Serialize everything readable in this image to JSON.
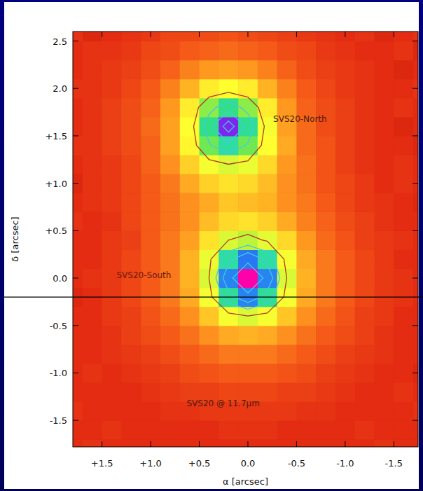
{
  "chart_data": {
    "type": "heatmap",
    "xlabel": "α [arcsec]",
    "ylabel": "δ [arcsec]",
    "xlim": [
      1.8,
      -1.75
    ],
    "ylim": [
      -1.78,
      2.6
    ],
    "xticks": [
      {
        "value": 1.5,
        "label": "+1.5"
      },
      {
        "value": 1.0,
        "label": "+1.0"
      },
      {
        "value": 0.5,
        "label": "+0.5"
      },
      {
        "value": 0,
        "label": "0.0"
      },
      {
        "value": -0.5,
        "label": "-0.5"
      },
      {
        "value": -1.0,
        "label": "-1.0"
      },
      {
        "value": -1.5,
        "label": "-1.5"
      }
    ],
    "yticks": [
      {
        "value": -1.5,
        "label": "-1.5"
      },
      {
        "value": -1.0,
        "label": "-1.0"
      },
      {
        "value": -0.5,
        "label": "-0.5"
      },
      {
        "value": 0,
        "label": "0.0"
      },
      {
        "value": 0.5,
        "label": "+0.5"
      },
      {
        "value": 1.0,
        "label": "+1.0"
      },
      {
        "value": 1.5,
        "label": "+1.5"
      },
      {
        "value": 2.0,
        "label": "2.0"
      },
      {
        "value": 2.5,
        "label": "2.5"
      }
    ],
    "x": [
      1.8,
      1.6,
      1.4,
      1.2,
      1.0,
      0.8,
      0.6,
      0.4,
      0.2,
      0,
      -0.2,
      -0.4,
      -0.6,
      -0.8,
      -1.0,
      -1.2,
      -1.4,
      -1.6,
      -1.8
    ],
    "y": [
      -1.8,
      -1.6,
      -1.4,
      -1.2,
      -1.0,
      -0.8,
      -0.6,
      -0.4,
      -0.2,
      0,
      0.2,
      0.4,
      0.6,
      0.8,
      1.0,
      1.2,
      1.4,
      1.6,
      1.8,
      2.0,
      2.2,
      2.4,
      2.6
    ],
    "values": [
      [
        10,
        11,
        10,
        10,
        10,
        10,
        10,
        10,
        10,
        10,
        10,
        10,
        10,
        10,
        10,
        10,
        11,
        10,
        10
      ],
      [
        10,
        10,
        11,
        10,
        10,
        10,
        10,
        10,
        11,
        11,
        11,
        10,
        10,
        10,
        10,
        11,
        10,
        10,
        10
      ],
      [
        11,
        10,
        10,
        10,
        10,
        11,
        11,
        12,
        12,
        12,
        12,
        12,
        11,
        11,
        10,
        10,
        10,
        10,
        11
      ],
      [
        10,
        10,
        10,
        10,
        11,
        12,
        13,
        13,
        14,
        14,
        14,
        13,
        13,
        12,
        11,
        10,
        10,
        11,
        10
      ],
      [
        10,
        11,
        10,
        11,
        12,
        13,
        15,
        16,
        17,
        17,
        17,
        16,
        15,
        13,
        12,
        11,
        10,
        10,
        9
      ],
      [
        10,
        10,
        11,
        12,
        13,
        15,
        17,
        19,
        21,
        21,
        21,
        19,
        17,
        15,
        13,
        12,
        11,
        10,
        10
      ],
      [
        10,
        10,
        11,
        13,
        15,
        17,
        20,
        24,
        27,
        28,
        27,
        24,
        20,
        17,
        15,
        13,
        11,
        10,
        10
      ],
      [
        10,
        10,
        12,
        13,
        16,
        19,
        24,
        30,
        37,
        40,
        37,
        30,
        24,
        19,
        16,
        13,
        12,
        10,
        10
      ],
      [
        9,
        10,
        12,
        14,
        17,
        21,
        27,
        37,
        56,
        68,
        56,
        37,
        27,
        21,
        17,
        14,
        12,
        11,
        10
      ],
      [
        10,
        11,
        12,
        14,
        17,
        21,
        28,
        40,
        68,
        100,
        68,
        40,
        28,
        21,
        17,
        14,
        12,
        11,
        10
      ],
      [
        10,
        10,
        12,
        14,
        17,
        21,
        28,
        38,
        57,
        69,
        57,
        37,
        27,
        21,
        17,
        14,
        12,
        10,
        10
      ],
      [
        10,
        10,
        12,
        13,
        17,
        21,
        26,
        33,
        40,
        43,
        39,
        32,
        25,
        19,
        16,
        13,
        12,
        11,
        10
      ],
      [
        11,
        10,
        11,
        14,
        17,
        20,
        24,
        29,
        32,
        33,
        31,
        27,
        22,
        18,
        15,
        13,
        11,
        10,
        10
      ],
      [
        10,
        11,
        12,
        14,
        17,
        20,
        24,
        27,
        30,
        29,
        28,
        24,
        21,
        17,
        14,
        12,
        11,
        10,
        9
      ],
      [
        9,
        11,
        12,
        14,
        17,
        21,
        27,
        31,
        33,
        32,
        29,
        24,
        20,
        16,
        14,
        12,
        10,
        11,
        10
      ],
      [
        10,
        11,
        12,
        14,
        18,
        24,
        31,
        37,
        40,
        38,
        32,
        25,
        20,
        16,
        13,
        11,
        10,
        11,
        10
      ],
      [
        11,
        11,
        13,
        15,
        18,
        26,
        35,
        49,
        57,
        49,
        36,
        27,
        19,
        16,
        13,
        11,
        10,
        10,
        9
      ],
      [
        10,
        11,
        13,
        15,
        19,
        26,
        36,
        55,
        83,
        56,
        37,
        26,
        19,
        15,
        13,
        11,
        10,
        9,
        10
      ],
      [
        10,
        11,
        13,
        15,
        18,
        25,
        34,
        47,
        55,
        47,
        34,
        25,
        18,
        15,
        13,
        11,
        10,
        11,
        10
      ],
      [
        11,
        11,
        12,
        14,
        17,
        22,
        28,
        34,
        36,
        34,
        28,
        22,
        17,
        14,
        12,
        11,
        10,
        10,
        11
      ],
      [
        10,
        11,
        12,
        13,
        15,
        18,
        22,
        25,
        26,
        25,
        22,
        18,
        15,
        13,
        12,
        11,
        10,
        9,
        10
      ],
      [
        10,
        11,
        11,
        12,
        14,
        15,
        17,
        18,
        19,
        18,
        17,
        15,
        14,
        12,
        11,
        10,
        10,
        11,
        9
      ],
      [
        11,
        9,
        10,
        11,
        12,
        14,
        14,
        15,
        16,
        15,
        14,
        13,
        12,
        11,
        10,
        11,
        9,
        10,
        11
      ]
    ],
    "color_range": [
      0,
      100
    ],
    "contour_levels": [
      40,
      50,
      60,
      75
    ],
    "annotations": [
      {
        "text": "SVS20-North",
        "x": -0.26,
        "y": 1.68
      },
      {
        "text": "SVS20-South",
        "x": 1.35,
        "y": 0.03
      },
      {
        "text": "SVS20 @ 11.7μm",
        "x": 0.63,
        "y": -1.32
      }
    ],
    "reference_line": -0.2
  }
}
